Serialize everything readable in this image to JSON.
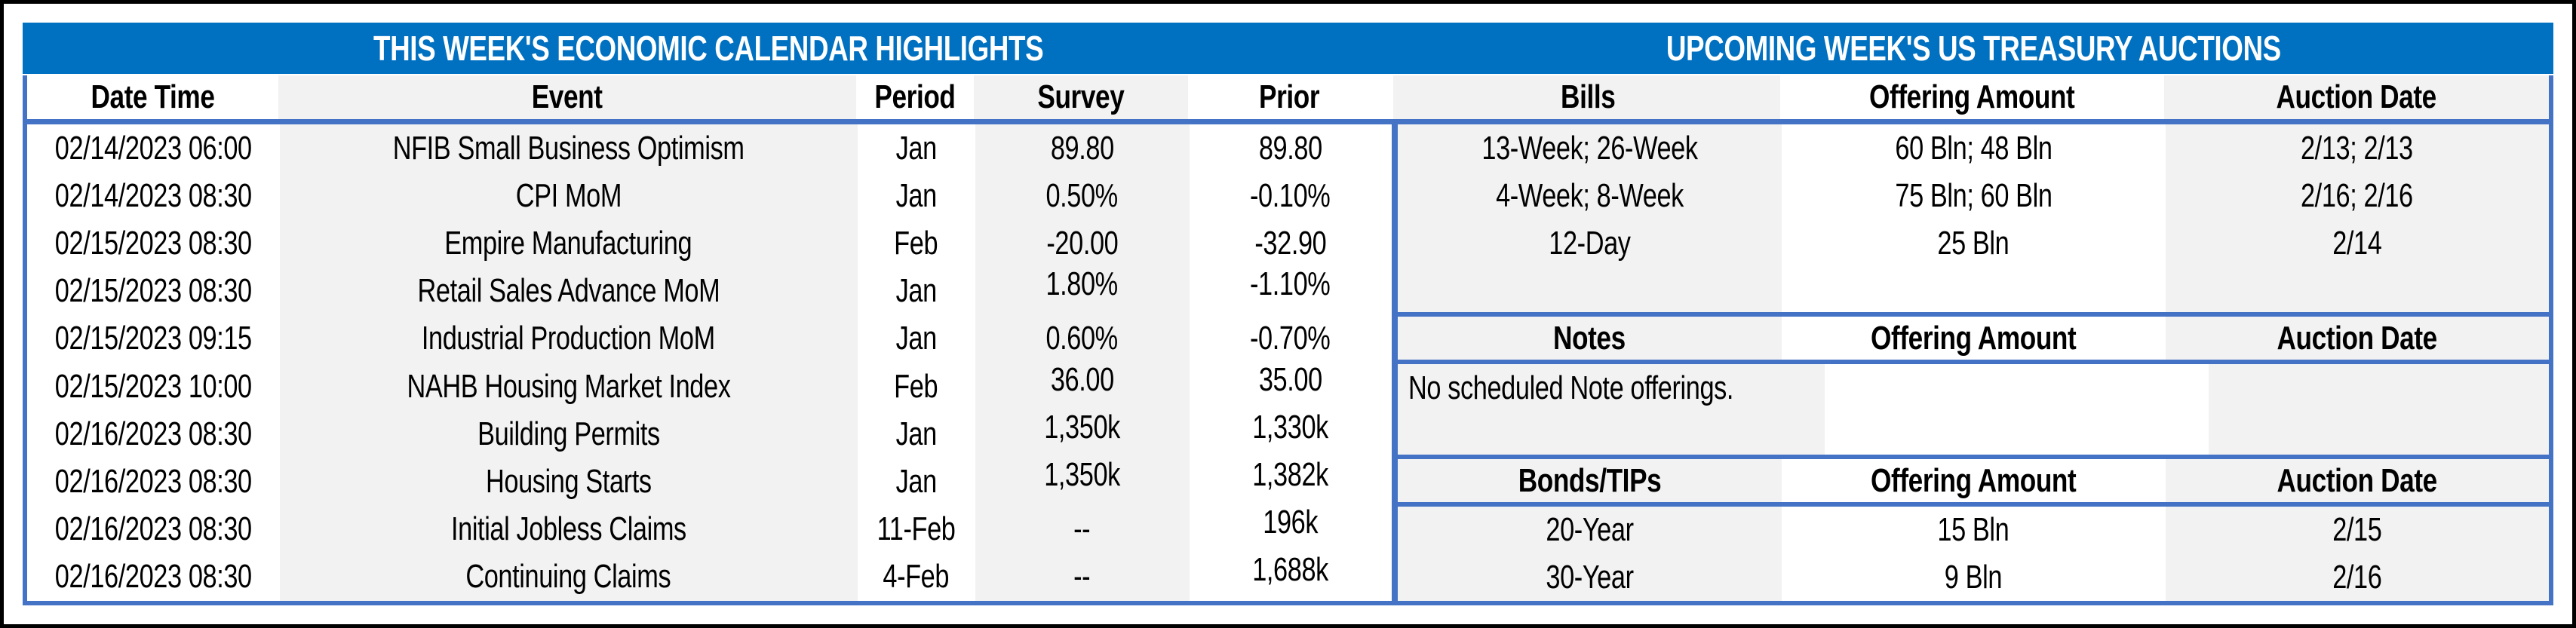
{
  "calendar": {
    "title": "THIS WEEK'S ECONOMIC CALENDAR HIGHLIGHTS",
    "columns": [
      "Date Time",
      "Event",
      "Period",
      "Survey",
      "Prior"
    ],
    "rows": [
      {
        "date_time": "02/14/2023 06:00",
        "event": "NFIB Small Business Optimism",
        "period": "Jan",
        "survey": "89.80",
        "prior": "89.80"
      },
      {
        "date_time": "02/14/2023 08:30",
        "event": "CPI MoM",
        "period": "Jan",
        "survey": "0.50%",
        "prior": "-0.10%"
      },
      {
        "date_time": "02/15/2023 08:30",
        "event": "Empire Manufacturing",
        "period": "Feb",
        "survey": "-20.00",
        "prior": "-32.90"
      },
      {
        "date_time": "02/15/2023 08:30",
        "event": "Retail Sales Advance MoM",
        "period": "Jan",
        "survey": "1.80%",
        "prior": "-1.10%"
      },
      {
        "date_time": "02/15/2023 09:15",
        "event": "Industrial Production MoM",
        "period": "Jan",
        "survey": "0.60%",
        "prior": "-0.70%"
      },
      {
        "date_time": "02/15/2023 10:00",
        "event": "NAHB Housing Market Index",
        "period": "Feb",
        "survey": "36.00",
        "prior": "35.00"
      },
      {
        "date_time": "02/16/2023 08:30",
        "event": "Building Permits",
        "period": "Jan",
        "survey": "1,350k",
        "prior": "1,330k"
      },
      {
        "date_time": "02/16/2023 08:30",
        "event": "Housing Starts",
        "period": "Jan",
        "survey": "1,350k",
        "prior": "1,382k"
      },
      {
        "date_time": "02/16/2023 08:30",
        "event": "Initial Jobless Claims",
        "period": "11-Feb",
        "survey": "--",
        "prior": "196k"
      },
      {
        "date_time": "02/16/2023 08:30",
        "event": "Continuing Claims",
        "period": "4-Feb",
        "survey": "--",
        "prior": "1,688k"
      }
    ]
  },
  "auctions": {
    "title": "UPCOMING WEEK'S US TREASURY AUCTIONS",
    "sections": {
      "bills": {
        "label": "Bills",
        "offering_header": "Offering Amount",
        "date_header": "Auction Date",
        "rows": [
          [
            "13-Week; 26-Week",
            "60 Bln; 48 Bln",
            "2/13; 2/13"
          ],
          [
            "4-Week; 8-Week",
            "75 Bln; 60 Bln",
            "2/16; 2/16"
          ],
          [
            "12-Day",
            "25 Bln",
            "2/14"
          ]
        ]
      },
      "notes": {
        "label": "Notes",
        "offering_header": "Offering Amount",
        "date_header": "Auction Date",
        "empty_message": "No scheduled Note offerings."
      },
      "bonds": {
        "label": "Bonds/TIPs",
        "offering_header": "Offering Amount",
        "date_header": "Auction Date",
        "rows": [
          [
            "20-Year",
            "15 Bln",
            "2/15"
          ],
          [
            "30-Year",
            "9 Bln",
            "2/16"
          ]
        ]
      }
    }
  },
  "colors": {
    "title_bar_blue": "#0070C0",
    "border_blue": "#4472C4",
    "stripe_grey": "#F2F2F2",
    "frame_black": "#000000",
    "title_text": "#FFFFFF",
    "body_text": "#000000"
  }
}
